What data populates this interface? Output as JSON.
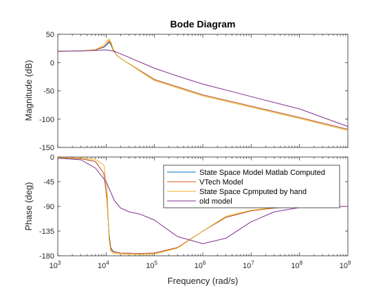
{
  "chart_data": {
    "type": "line",
    "title": "Bode Diagram",
    "xlabel": "Frequency  (rad/s)",
    "xscale": "log",
    "xlim": [
      1000,
      1000000000
    ],
    "x_ticks": [
      {
        "base": "10",
        "exp": "3"
      },
      {
        "base": "10",
        "exp": "4"
      },
      {
        "base": "10",
        "exp": "5"
      },
      {
        "base": "10",
        "exp": "6"
      },
      {
        "base": "10",
        "exp": "7"
      },
      {
        "base": "10",
        "exp": "8"
      },
      {
        "base": "10",
        "exp": "9"
      }
    ],
    "legend": {
      "placement": "inside-phase-right",
      "entries": [
        "State Space Model Matlab Computed",
        "VTech Model",
        "State Space Cpmputed by hand",
        "old model"
      ]
    },
    "colors": {
      "State Space Model Matlab Computed": "#0072BD",
      "VTech Model": "#D95319",
      "State Space Cpmputed by hand": "#EDB120",
      "old model": "#7E2F8E"
    },
    "magnitude": {
      "ylabel": "Magnitude (dB)",
      "ylim": [
        -150,
        50
      ],
      "y_ticks": [
        "50",
        "0",
        "-50",
        "-100",
        "-150"
      ],
      "series": [
        {
          "name": "State Space Model Matlab Computed",
          "x": [
            1000,
            3000,
            6000,
            9000,
            10500,
            11500,
            12500,
            14000,
            17000,
            25000,
            100000,
            1000000,
            10000000,
            100000000,
            1000000000
          ],
          "y": [
            20,
            20.5,
            22.5,
            27,
            32,
            36,
            32,
            22,
            12,
            2,
            -30,
            -57,
            -77,
            -97,
            -118
          ]
        },
        {
          "name": "VTech Model",
          "x": [
            1000,
            3000,
            6000,
            9000,
            10500,
            11500,
            12500,
            14000,
            17000,
            25000,
            100000,
            1000000,
            10000000,
            100000000,
            1000000000
          ],
          "y": [
            20,
            20.5,
            22.5,
            28,
            34,
            39,
            34,
            23,
            12,
            2,
            -30,
            -57,
            -77,
            -97,
            -118
          ]
        },
        {
          "name": "State Space Cpmputed by hand",
          "x": [
            1000,
            3000,
            6000,
            9000,
            10500,
            11500,
            12500,
            14000,
            17000,
            25000,
            100000,
            1000000,
            10000000,
            100000000,
            1000000000
          ],
          "y": [
            20,
            20.5,
            23,
            31,
            38,
            42,
            37,
            24,
            12,
            2,
            -32,
            -59,
            -79,
            -99,
            -120
          ]
        },
        {
          "name": "old model",
          "x": [
            1000,
            3000,
            6000,
            10000,
            15000,
            30000,
            100000,
            300000,
            1000000,
            10000000,
            100000000,
            1000000000
          ],
          "y": [
            20,
            20.5,
            21.5,
            22.5,
            20,
            9,
            -10,
            -24,
            -38,
            -60,
            -82,
            -113
          ]
        }
      ]
    },
    "phase": {
      "ylabel": "Phase (deg)",
      "ylim": [
        -180,
        0
      ],
      "y_ticks": [
        "0",
        "-45",
        "-90",
        "-135",
        "-180"
      ],
      "series": [
        {
          "name": "State Space Model Matlab Computed",
          "x": [
            1000,
            3000,
            6000,
            9000,
            10500,
            11500,
            12500,
            14000,
            20000,
            50000,
            100000,
            300000,
            1000000,
            3000000,
            10000000,
            30000000,
            100000000,
            1000000000
          ],
          "y": [
            -1,
            -3,
            -8,
            -30,
            -80,
            -140,
            -165,
            -172,
            -175,
            -176,
            -175,
            -165,
            -135,
            -110,
            -98,
            -93,
            -90,
            -90
          ]
        },
        {
          "name": "VTech Model",
          "x": [
            1000,
            3000,
            6000,
            9000,
            10500,
            11500,
            12500,
            14000,
            20000,
            50000,
            100000,
            300000,
            1000000,
            3000000,
            10000000,
            30000000,
            100000000,
            1000000000
          ],
          "y": [
            -1,
            -3,
            -8,
            -30,
            -80,
            -145,
            -168,
            -173,
            -175,
            -176,
            -175,
            -165,
            -135,
            -110,
            -98,
            -93,
            -90,
            -90
          ]
        },
        {
          "name": "State Space Cpmputed by hand",
          "x": [
            1000,
            3000,
            6000,
            9000,
            10500,
            11500,
            12500,
            14000,
            20000,
            50000,
            100000,
            300000,
            1000000,
            3000000,
            10000000,
            30000000,
            100000000,
            1000000000
          ],
          "y": [
            -1,
            -2,
            -4,
            -15,
            -60,
            -150,
            -172,
            -175,
            -177,
            -178,
            -177,
            -166,
            -135,
            -108,
            -97,
            -92,
            -90,
            -90
          ]
        },
        {
          "name": "old model",
          "x": [
            1000,
            3000,
            6000,
            10000,
            15000,
            20000,
            30000,
            50000,
            100000,
            300000,
            1000000,
            3000000,
            10000000,
            30000000,
            100000000,
            1000000000
          ],
          "y": [
            -2,
            -5,
            -20,
            -45,
            -80,
            -93,
            -100,
            -104,
            -115,
            -145,
            -158,
            -148,
            -118,
            -100,
            -92,
            -90
          ]
        }
      ]
    }
  }
}
